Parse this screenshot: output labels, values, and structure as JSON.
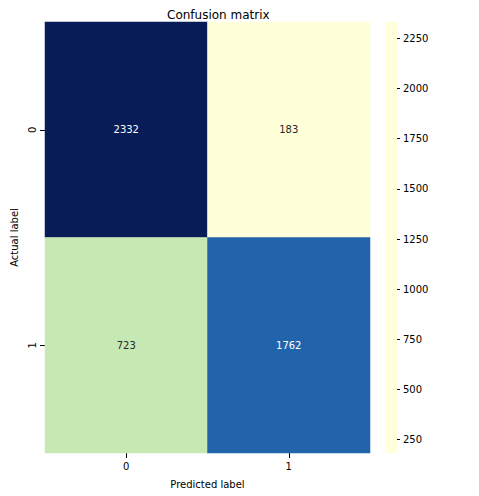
{
  "chart_data": {
    "type": "heatmap",
    "title": "Confusion matrix",
    "x_label": "Predicted label",
    "y_label": "Actual label",
    "x": [
      "0",
      "1"
    ],
    "y": [
      "0",
      "1"
    ],
    "cells": [
      [
        2332,
        183
      ],
      [
        723,
        1762
      ]
    ],
    "data_labels": true,
    "colorbar": {
      "range": [
        183,
        2332
      ],
      "ticks": [
        250,
        500,
        750,
        1000,
        1250,
        1500,
        1750,
        2000,
        2250
      ]
    }
  }
}
